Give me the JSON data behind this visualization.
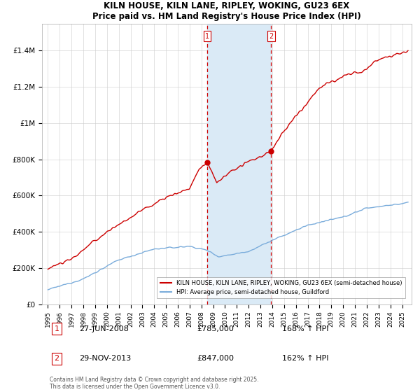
{
  "title": "KILN HOUSE, KILN LANE, RIPLEY, WOKING, GU23 6EX",
  "subtitle": "Price paid vs. HM Land Registry's House Price Index (HPI)",
  "legend_line1": "KILN HOUSE, KILN LANE, RIPLEY, WOKING, GU23 6EX (semi-detached house)",
  "legend_line2": "HPI: Average price, semi-detached house, Guildford",
  "annotation1_date": "27-JUN-2008",
  "annotation1_price": "£785,000",
  "annotation1_hpi": "168% ↑ HPI",
  "annotation2_date": "29-NOV-2013",
  "annotation2_price": "£847,000",
  "annotation2_hpi": "162% ↑ HPI",
  "footnote": "Contains HM Land Registry data © Crown copyright and database right 2025.\nThis data is licensed under the Open Government Licence v3.0.",
  "marker1_x": 2008.49,
  "marker1_y": 785000,
  "marker2_x": 2013.91,
  "marker2_y": 847000,
  "vline1_x": 2008.49,
  "vline2_x": 2013.91,
  "shaded_region_x1": 2008.49,
  "shaded_region_x2": 2013.91,
  "ylim": [
    0,
    1550000
  ],
  "xlim": [
    1994.5,
    2025.8
  ],
  "house_color": "#cc0000",
  "hpi_color": "#7aacdb",
  "shaded_color": "#daeaf6",
  "vline_color": "#cc0000",
  "yticks": [
    0,
    200000,
    400000,
    600000,
    800000,
    1000000,
    1200000,
    1400000
  ],
  "ytick_labels": [
    "£0",
    "£200K",
    "£400K",
    "£600K",
    "£800K",
    "£1M",
    "£1.2M",
    "£1.4M"
  ],
  "xticks": [
    1995,
    1996,
    1997,
    1998,
    1999,
    2000,
    2001,
    2002,
    2003,
    2004,
    2005,
    2006,
    2007,
    2008,
    2009,
    2010,
    2011,
    2012,
    2013,
    2014,
    2015,
    2016,
    2017,
    2018,
    2019,
    2020,
    2021,
    2022,
    2023,
    2024,
    2025
  ]
}
